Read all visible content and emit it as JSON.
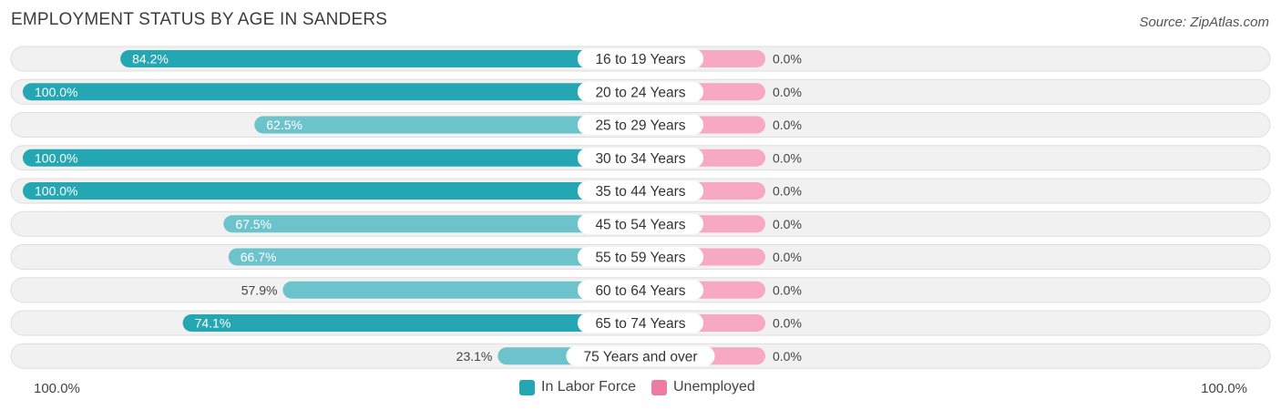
{
  "title": "EMPLOYMENT STATUS BY AGE IN SANDERS",
  "source": "Source: ZipAtlas.com",
  "colors": {
    "labor_dark": "#24a6b3",
    "labor_light": "#6cc3cc",
    "unemployed": "#f7a8c2",
    "unemployed_legend": "#f07ba0",
    "row_bg": "#f1f1f1"
  },
  "legend": {
    "labor": "In Labor Force",
    "unemployed": "Unemployed"
  },
  "axis": {
    "left": "100.0%",
    "right": "100.0%"
  },
  "chart_data": {
    "type": "bar",
    "orientation": "horizontal-diverging",
    "title": "EMPLOYMENT STATUS BY AGE IN SANDERS",
    "categories": [
      "16 to 19 Years",
      "20 to 24 Years",
      "25 to 29 Years",
      "30 to 34 Years",
      "35 to 44 Years",
      "45 to 54 Years",
      "55 to 59 Years",
      "60 to 64 Years",
      "65 to 74 Years",
      "75 Years and over"
    ],
    "series": [
      {
        "name": "In Labor Force",
        "values": [
          84.2,
          100.0,
          62.5,
          100.0,
          100.0,
          67.5,
          66.7,
          57.9,
          74.1,
          23.1
        ]
      },
      {
        "name": "Unemployed",
        "values": [
          0.0,
          0.0,
          0.0,
          0.0,
          0.0,
          0.0,
          0.0,
          0.0,
          0.0,
          0.0
        ]
      }
    ],
    "value_labels_left": [
      "84.2%",
      "100.0%",
      "62.5%",
      "100.0%",
      "100.0%",
      "67.5%",
      "66.7%",
      "57.9%",
      "74.1%",
      "23.1%"
    ],
    "value_labels_right": [
      "0.0%",
      "0.0%",
      "0.0%",
      "0.0%",
      "0.0%",
      "0.0%",
      "0.0%",
      "0.0%",
      "0.0%",
      "0.0%"
    ],
    "xlim": [
      -100,
      100
    ],
    "legend_position": "bottom-center"
  }
}
